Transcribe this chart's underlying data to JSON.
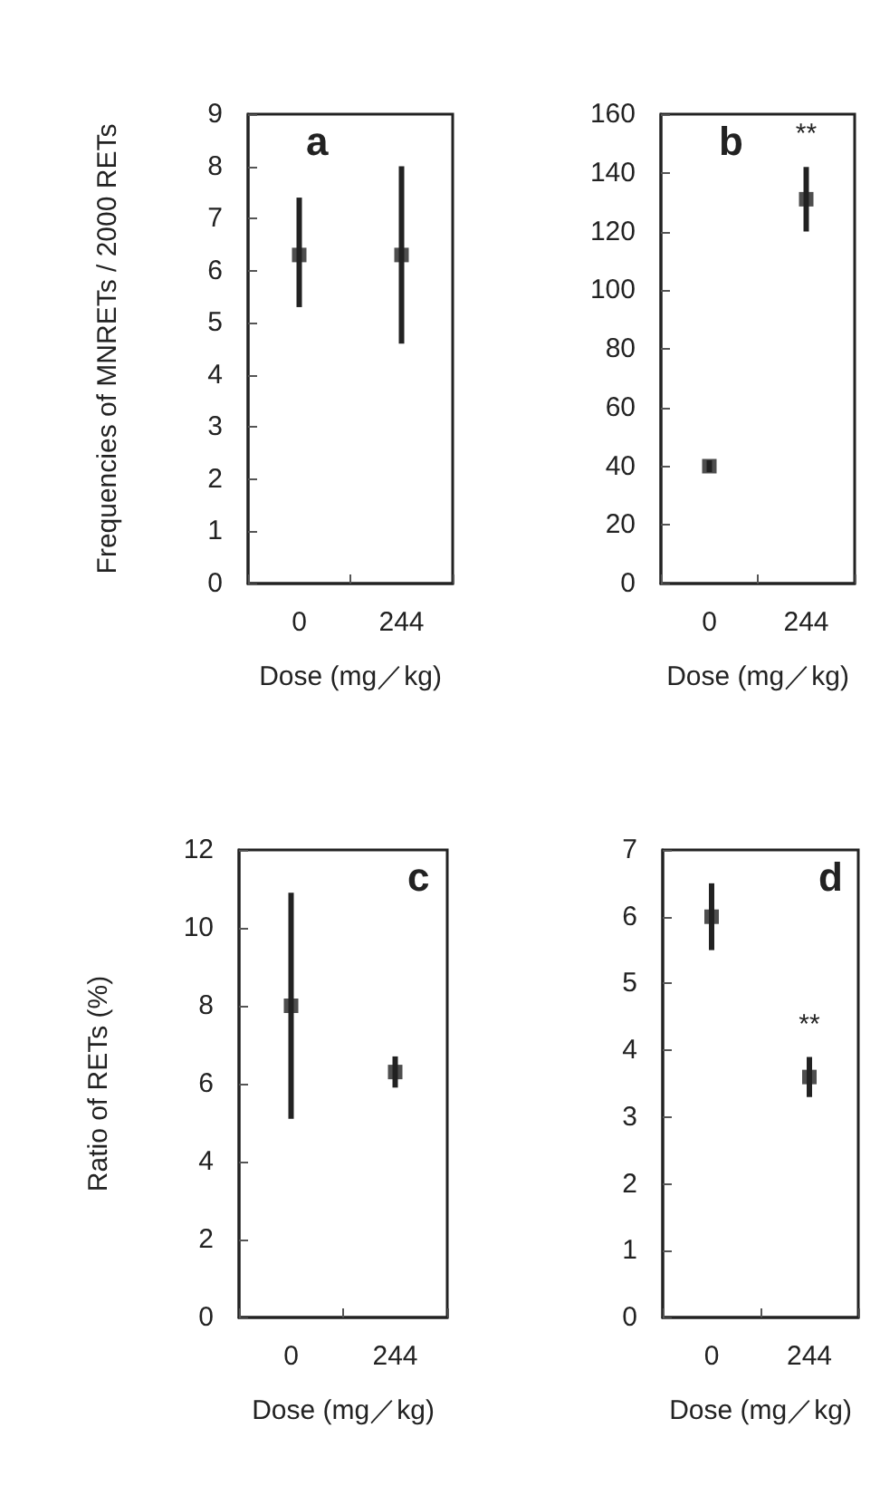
{
  "chart_data": [
    {
      "type": "scatter",
      "ylabel": "Frequencies of MNRETs / 2000 RETs",
      "xlabel": "Dose (mg／kg)",
      "categories": [
        "0",
        "244"
      ],
      "values": [
        6.3,
        6.3
      ],
      "errors": [
        [
          5.3,
          7.4
        ],
        [
          4.6,
          8.0
        ]
      ],
      "color": "#222222",
      "marker": "square",
      "ylim": [
        0,
        9
      ],
      "yticks": [
        0,
        1,
        2,
        3,
        4,
        5,
        6,
        7,
        8,
        9
      ],
      "annotations": [
        "a"
      ]
    },
    {
      "type": "scatter",
      "xlabel": "Dose (mg／kg)",
      "categories": [
        "0",
        "244"
      ],
      "values": [
        40,
        131
      ],
      "errors": [
        [
          38,
          42
        ],
        [
          120,
          142
        ]
      ],
      "color": "#222222",
      "marker": "square",
      "ylim": [
        0,
        160
      ],
      "yticks": [
        0,
        20,
        40,
        60,
        80,
        100,
        120,
        140,
        160
      ],
      "annotations": [
        "b",
        "**"
      ]
    },
    {
      "type": "scatter",
      "ylabel": "Ratio of RETs (%)",
      "xlabel": "Dose (mg／kg)",
      "categories": [
        "0",
        "244"
      ],
      "values": [
        8.0,
        6.3
      ],
      "errors": [
        [
          5.1,
          10.9
        ],
        [
          5.9,
          6.7
        ]
      ],
      "color": "#222222",
      "marker": "square",
      "ylim": [
        0,
        12
      ],
      "yticks": [
        0,
        2,
        4,
        6,
        8,
        10,
        12
      ],
      "annotations": [
        "c"
      ]
    },
    {
      "type": "scatter",
      "xlabel": "Dose (mg／kg)",
      "categories": [
        "0",
        "244"
      ],
      "values": [
        6.0,
        3.6
      ],
      "errors": [
        [
          5.5,
          6.5
        ],
        [
          3.3,
          3.9
        ]
      ],
      "color": "#222222",
      "marker": "square",
      "ylim": [
        0,
        7
      ],
      "yticks": [
        0,
        1,
        2,
        3,
        4,
        5,
        6,
        7
      ],
      "annotations": [
        "d",
        "**"
      ]
    }
  ]
}
